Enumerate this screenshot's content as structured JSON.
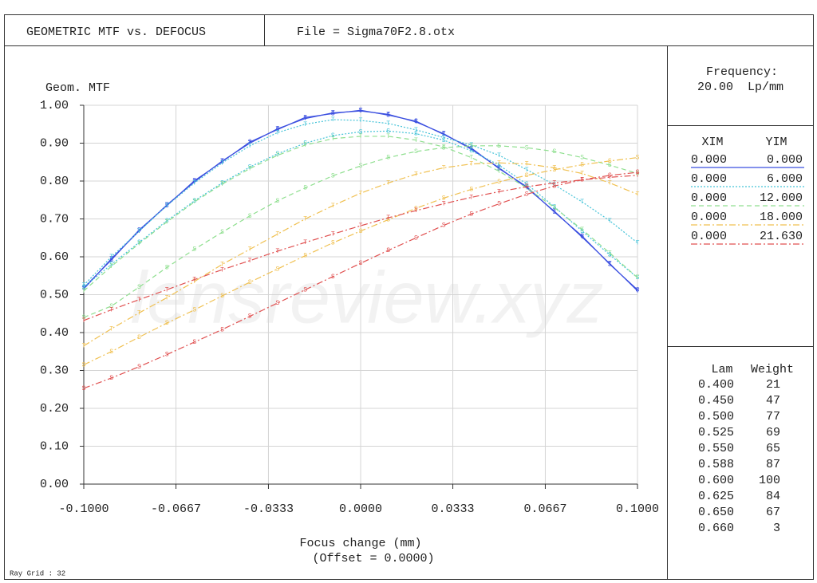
{
  "chart_data": {
    "type": "line",
    "title": "GEOMETRIC MTF vs. DEFOCUS",
    "file": "File = Sigma70F2.8.otx",
    "frequency_label": "Frequency:",
    "frequency": "20.00  Lp/mm",
    "ylabel": "Geom. MTF",
    "xlabel": "Focus change (mm)",
    "offset": "(Offset = 0.0000)",
    "ray_grid": "Ray Grid : 32",
    "watermark": "lensreview.xyz",
    "grid": true,
    "xlim": [
      -0.1,
      0.1
    ],
    "ylim": [
      0,
      1
    ],
    "xticks": [
      {
        "value": -0.1,
        "label": "-0.1000"
      },
      {
        "value": -0.0667,
        "label": "-0.0667"
      },
      {
        "value": -0.0333,
        "label": "-0.0333"
      },
      {
        "value": 0,
        "label": "0.0000"
      },
      {
        "value": 0.0333,
        "label": "0.0333"
      },
      {
        "value": 0.0667,
        "label": "0.0667"
      },
      {
        "value": 0.1,
        "label": "0.1000"
      }
    ],
    "yticks": [
      {
        "value": 0,
        "label": "0.00"
      },
      {
        "value": 0.1,
        "label": "0.10"
      },
      {
        "value": 0.2,
        "label": "0.20"
      },
      {
        "value": 0.3,
        "label": "0.30"
      },
      {
        "value": 0.4,
        "label": "0.40"
      },
      {
        "value": 0.5,
        "label": "0.50"
      },
      {
        "value": 0.6,
        "label": "0.60"
      },
      {
        "value": 0.7,
        "label": "0.70"
      },
      {
        "value": 0.8,
        "label": "0.80"
      },
      {
        "value": 0.9,
        "label": "0.90"
      },
      {
        "value": 1,
        "label": "1.00"
      }
    ],
    "x": [
      -0.1,
      -0.09,
      -0.08,
      -0.07,
      -0.06,
      -0.05,
      -0.04,
      -0.03,
      -0.02,
      -0.01,
      0,
      0.01,
      0.02,
      0.03,
      0.04,
      0.05,
      0.06,
      0.07,
      0.08,
      0.09,
      0.1
    ],
    "field_headers": [
      "XIM",
      "YIM"
    ],
    "fields": [
      {
        "xim": "0.000",
        "yim": "0.000",
        "color": "#3b4fe0",
        "dash": "none",
        "curves": [
          {
            "marker": "T",
            "values": [
              0.515,
              0.595,
              0.668,
              0.737,
              0.798,
              0.853,
              0.9,
              0.938,
              0.965,
              0.98,
              0.985,
              0.976,
              0.956,
              0.925,
              0.884,
              0.835,
              0.782,
              0.72,
              0.652,
              0.582,
              0.51
            ]
          },
          {
            "marker": "S",
            "values": [
              0.518,
              0.592,
              0.671,
              0.735,
              0.801,
              0.851,
              0.903,
              0.936,
              0.968,
              0.978,
              0.987,
              0.974,
              0.958,
              0.923,
              0.887,
              0.833,
              0.785,
              0.718,
              0.655,
              0.58,
              0.513
            ]
          }
        ]
      },
      {
        "xim": "0.000",
        "yim": "6.000",
        "color": "#45c3d8",
        "dash": "2,2",
        "curves": [
          {
            "marker": "T",
            "values": [
              0.525,
              0.6,
              0.668,
              0.735,
              0.795,
              0.848,
              0.893,
              0.928,
              0.95,
              0.962,
              0.96,
              0.952,
              0.935,
              0.915,
              0.895,
              0.868,
              0.83,
              0.79,
              0.745,
              0.695,
              0.637
            ]
          },
          {
            "marker": "S",
            "values": [
              0.52,
              0.58,
              0.638,
              0.695,
              0.748,
              0.795,
              0.837,
              0.872,
              0.9,
              0.92,
              0.93,
              0.932,
              0.925,
              0.908,
              0.88,
              0.842,
              0.792,
              0.732,
              0.668,
              0.605,
              0.545
            ]
          }
        ]
      },
      {
        "xim": "0.000",
        "yim": "12.000",
        "color": "#8fdf8f",
        "dash": "6,4",
        "curves": [
          {
            "marker": "T",
            "values": [
              0.51,
              0.575,
              0.635,
              0.692,
              0.745,
              0.792,
              0.833,
              0.868,
              0.895,
              0.912,
              0.918,
              0.918,
              0.908,
              0.89,
              0.862,
              0.826,
              0.782,
              0.73,
              0.672,
              0.61,
              0.545
            ]
          },
          {
            "marker": "S",
            "values": [
              0.44,
              0.47,
              0.52,
              0.572,
              0.62,
              0.665,
              0.708,
              0.748,
              0.782,
              0.814,
              0.84,
              0.862,
              0.878,
              0.888,
              0.893,
              0.893,
              0.888,
              0.878,
              0.862,
              0.842,
              0.82
            ]
          }
        ]
      },
      {
        "xim": "0.000",
        "yim": "18.000",
        "color": "#f0c050",
        "dash": "8,3,2,3",
        "curves": [
          {
            "marker": "T",
            "values": [
              0.365,
              0.41,
              0.452,
              0.492,
              0.535,
              0.58,
              0.62,
              0.66,
              0.7,
              0.735,
              0.768,
              0.795,
              0.818,
              0.835,
              0.845,
              0.848,
              0.845,
              0.835,
              0.82,
              0.795,
              0.765
            ]
          },
          {
            "marker": "S",
            "values": [
              0.315,
              0.35,
              0.388,
              0.425,
              0.46,
              0.497,
              0.533,
              0.568,
              0.603,
              0.637,
              0.668,
              0.698,
              0.728,
              0.755,
              0.778,
              0.798,
              0.815,
              0.83,
              0.843,
              0.853,
              0.862
            ]
          }
        ]
      },
      {
        "xim": "0.000",
        "yim": "21.630",
        "color": "#e05050",
        "dash": "8,3,2,3",
        "curves": [
          {
            "marker": "T",
            "values": [
              0.432,
              0.46,
              0.487,
              0.513,
              0.54,
              0.566,
              0.59,
              0.615,
              0.638,
              0.66,
              0.682,
              0.703,
              0.722,
              0.74,
              0.757,
              0.772,
              0.785,
              0.795,
              0.803,
              0.81,
              0.815
            ]
          },
          {
            "marker": "S",
            "values": [
              0.253,
              0.28,
              0.31,
              0.342,
              0.375,
              0.408,
              0.443,
              0.478,
              0.513,
              0.548,
              0.583,
              0.617,
              0.65,
              0.683,
              0.713,
              0.74,
              0.765,
              0.787,
              0.803,
              0.815,
              0.823
            ]
          }
        ]
      }
    ],
    "wavelength_headers": [
      "Lam",
      "Weight"
    ],
    "wavelengths": [
      [
        "0.400",
        "21"
      ],
      [
        "0.450",
        "47"
      ],
      [
        "0.500",
        "77"
      ],
      [
        "0.525",
        "69"
      ],
      [
        "0.550",
        "65"
      ],
      [
        "0.588",
        "87"
      ],
      [
        "0.600",
        "100"
      ],
      [
        "0.625",
        "84"
      ],
      [
        "0.650",
        "67"
      ],
      [
        "0.660",
        "3"
      ]
    ]
  }
}
